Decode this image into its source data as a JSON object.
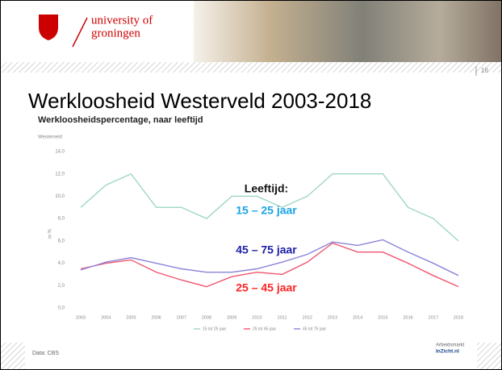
{
  "slide": {
    "logo_line1": "university of",
    "logo_line2": "groningen",
    "page_number": "16",
    "title": "Werkloosheid Westerveld 2003-2018",
    "source": "Data: CBS",
    "partner_line1": "Arbeidsmarkt",
    "partner_line2": "InZicht.nl"
  },
  "chart_data": {
    "type": "line",
    "title": "Werkloosheidspercentage, naar leeftijd",
    "subtitle": "Westerveld",
    "y_label": "in %",
    "categories": [
      "2003",
      "2004",
      "2005",
      "2006",
      "2007",
      "2008",
      "2009",
      "2010",
      "2011",
      "2012",
      "2013",
      "2014",
      "2015",
      "2016",
      "2017",
      "2018"
    ],
    "series": [
      {
        "name": "15 tot 25 jaar",
        "color": "#9fd6c8",
        "values": [
          9,
          11,
          12,
          9,
          9,
          8,
          10,
          10,
          9,
          10,
          12,
          12,
          12,
          9,
          8,
          6
        ]
      },
      {
        "name": "25 tot 45 jaar",
        "color": "#f25470",
        "values": [
          3.5,
          4.0,
          4.3,
          3.2,
          2.5,
          1.9,
          2.8,
          3.2,
          3.0,
          4.1,
          5.8,
          5.0,
          5.0,
          4.0,
          2.9,
          1.9
        ]
      },
      {
        "name": "45 tot 75 jaar",
        "color": "#8a84d8",
        "values": [
          3.4,
          4.1,
          4.5,
          4.0,
          3.5,
          3.2,
          3.2,
          3.5,
          4.1,
          4.8,
          5.9,
          5.6,
          6.1,
          5.0,
          4.0,
          2.9
        ]
      }
    ],
    "ylim": [
      0,
      14
    ],
    "yticks": [
      {
        "value": 0,
        "label": "0,0"
      },
      {
        "value": 2,
        "label": "2,0"
      },
      {
        "value": 4,
        "label": "4,0"
      },
      {
        "value": 6,
        "label": "6,0"
      },
      {
        "value": 8,
        "label": "8,0"
      },
      {
        "value": 10,
        "label": "10,0"
      },
      {
        "value": 12,
        "label": "12,0"
      },
      {
        "value": 14,
        "label": "14,0"
      }
    ],
    "grid": false,
    "legend": "bottom",
    "annotations": [
      {
        "text": "Leeftijd:",
        "color": "#111111"
      },
      {
        "text": "15 – 25 jaar",
        "color": "#1ba3e3"
      },
      {
        "text": "45 – 75 jaar",
        "color": "#1e1ea8"
      },
      {
        "text": "25 – 45 jaar",
        "color": "#ff2424"
      }
    ]
  }
}
